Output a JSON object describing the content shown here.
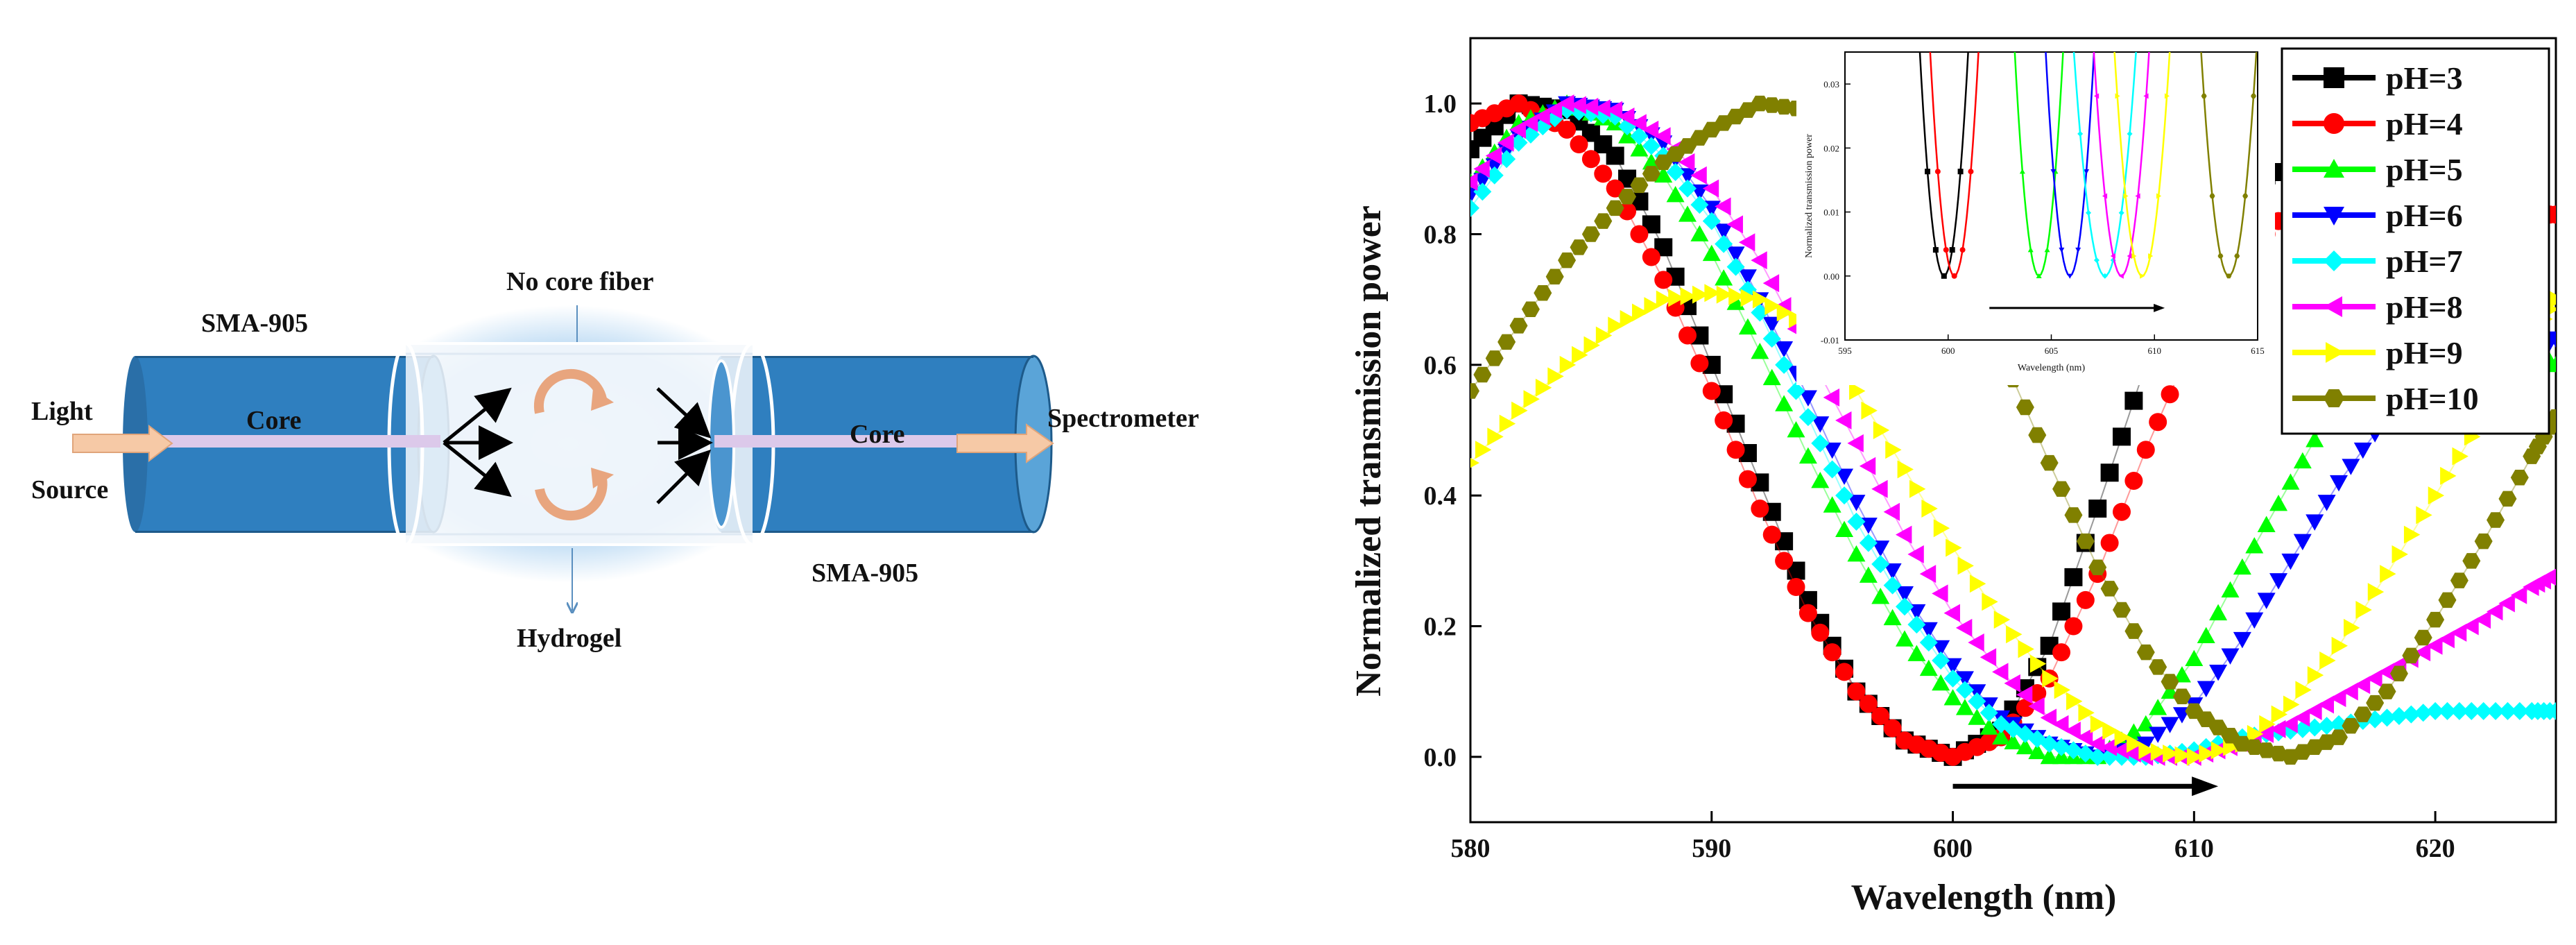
{
  "diagram": {
    "labels": {
      "light": "Light",
      "source": "Source",
      "core_left": "Core",
      "core_right": "Core",
      "sma_top": "SMA-905",
      "sma_bottom": "SMA-905",
      "no_core_fiber": "No core fiber",
      "hydrogel": "Hydrogel",
      "spectrometer": "Spectrometer"
    },
    "colors": {
      "cylinder": "#2f7fbf",
      "cylinder_end": "#5aa4d8",
      "glow": "#9cc8ee",
      "core_strip": "#d8c8e8",
      "arrow_fill": "#f6c9a6"
    }
  },
  "chart_data": {
    "type": "scatter",
    "xlabel": "Wavelength (nm)",
    "ylabel": "Normalized transmission power",
    "xlim": [
      580,
      625
    ],
    "ylim": [
      -0.1,
      1.1
    ],
    "xticks": [
      580,
      590,
      600,
      610,
      620
    ],
    "yticks": [
      0.0,
      0.2,
      0.4,
      0.6,
      0.8,
      1.0
    ],
    "xtick_labels": [
      "580",
      "590",
      "600",
      "610",
      "620"
    ],
    "ytick_labels": [
      "0.0",
      "0.2",
      "0.4",
      "0.6",
      "0.8",
      "1.0"
    ],
    "legend_position": "top-right",
    "shift_arrow": {
      "from": 600,
      "to": 611,
      "y": -0.045
    },
    "series": [
      {
        "name": "pH=3",
        "color": "#000000",
        "marker": "square",
        "points": [
          [
            580,
            0.93
          ],
          [
            582,
            1.0
          ],
          [
            584,
            0.99
          ],
          [
            586,
            0.92
          ],
          [
            588,
            0.78
          ],
          [
            590,
            0.6
          ],
          [
            592,
            0.42
          ],
          [
            594,
            0.24
          ],
          [
            596,
            0.1
          ],
          [
            598,
            0.025
          ],
          [
            600,
            0.0
          ],
          [
            602,
            0.04
          ],
          [
            604,
            0.17
          ],
          [
            606,
            0.38
          ],
          [
            608,
            0.6
          ],
          [
            610,
            0.78
          ],
          [
            612,
            0.88
          ],
          [
            614,
            0.9
          ]
        ]
      },
      {
        "name": "pH=4",
        "color": "#ff0000",
        "marker": "circle",
        "points": [
          [
            580,
            0.97
          ],
          [
            582,
            1.0
          ],
          [
            584,
            0.96
          ],
          [
            586,
            0.87
          ],
          [
            588,
            0.73
          ],
          [
            590,
            0.56
          ],
          [
            592,
            0.38
          ],
          [
            594,
            0.22
          ],
          [
            596,
            0.1
          ],
          [
            598,
            0.025
          ],
          [
            600,
            0.0
          ],
          [
            602,
            0.03
          ],
          [
            604,
            0.12
          ],
          [
            606,
            0.28
          ],
          [
            608,
            0.47
          ],
          [
            610,
            0.64
          ],
          [
            612,
            0.76
          ],
          [
            614,
            0.84
          ],
          [
            616,
            0.88
          ],
          [
            618,
            0.9
          ],
          [
            620,
            0.9
          ],
          [
            622,
            0.88
          ],
          [
            624,
            0.83
          ],
          [
            625,
            0.83
          ]
        ]
      },
      {
        "name": "pH=5",
        "color": "#00ff00",
        "marker": "triangle-up",
        "points": [
          [
            580,
            0.88
          ],
          [
            582,
            0.97
          ],
          [
            584,
            1.0
          ],
          [
            586,
            0.97
          ],
          [
            588,
            0.89
          ],
          [
            590,
            0.77
          ],
          [
            592,
            0.62
          ],
          [
            594,
            0.46
          ],
          [
            596,
            0.31
          ],
          [
            598,
            0.18
          ],
          [
            600,
            0.09
          ],
          [
            602,
            0.03
          ],
          [
            604,
            0.0
          ],
          [
            606,
            0.0
          ],
          [
            608,
            0.05
          ],
          [
            610,
            0.15
          ],
          [
            612,
            0.29
          ],
          [
            614,
            0.42
          ],
          [
            616,
            0.55
          ],
          [
            618,
            0.64
          ],
          [
            620,
            0.68
          ],
          [
            622,
            0.68
          ],
          [
            624,
            0.62
          ],
          [
            625,
            0.6
          ]
        ]
      },
      {
        "name": "pH=6",
        "color": "#0000ff",
        "marker": "triangle-down",
        "points": [
          [
            580,
            0.86
          ],
          [
            582,
            0.95
          ],
          [
            584,
            1.0
          ],
          [
            586,
            0.99
          ],
          [
            588,
            0.94
          ],
          [
            590,
            0.84
          ],
          [
            592,
            0.7
          ],
          [
            594,
            0.55
          ],
          [
            596,
            0.39
          ],
          [
            598,
            0.25
          ],
          [
            600,
            0.14
          ],
          [
            602,
            0.06
          ],
          [
            604,
            0.02
          ],
          [
            606,
            0.0
          ],
          [
            608,
            0.02
          ],
          [
            610,
            0.08
          ],
          [
            612,
            0.18
          ],
          [
            614,
            0.3
          ],
          [
            616,
            0.42
          ],
          [
            618,
            0.52
          ],
          [
            620,
            0.58
          ],
          [
            622,
            0.6
          ],
          [
            624,
            0.62
          ],
          [
            625,
            0.64
          ]
        ]
      },
      {
        "name": "pH=7",
        "color": "#00ffff",
        "marker": "diamond",
        "points": [
          [
            580,
            0.84
          ],
          [
            582,
            0.94
          ],
          [
            584,
            0.99
          ],
          [
            586,
            0.98
          ],
          [
            588,
            0.92
          ],
          [
            590,
            0.82
          ],
          [
            592,
            0.68
          ],
          [
            594,
            0.52
          ],
          [
            596,
            0.36
          ],
          [
            598,
            0.23
          ],
          [
            600,
            0.12
          ],
          [
            602,
            0.05
          ],
          [
            604,
            0.02
          ],
          [
            606,
            0.0
          ],
          [
            608,
            0.0
          ],
          [
            610,
            0.01
          ],
          [
            612,
            0.03
          ],
          [
            614,
            0.04
          ],
          [
            616,
            0.05
          ],
          [
            618,
            0.06
          ],
          [
            620,
            0.07
          ],
          [
            622,
            0.07
          ],
          [
            624,
            0.07
          ],
          [
            625,
            0.07
          ]
        ]
      },
      {
        "name": "pH=8",
        "color": "#ff00ff",
        "marker": "triangle-left",
        "points": [
          [
            580,
            0.88
          ],
          [
            582,
            0.96
          ],
          [
            584,
            1.0
          ],
          [
            586,
            0.99
          ],
          [
            588,
            0.95
          ],
          [
            590,
            0.87
          ],
          [
            592,
            0.76
          ],
          [
            594,
            0.62
          ],
          [
            596,
            0.48
          ],
          [
            598,
            0.34
          ],
          [
            600,
            0.22
          ],
          [
            602,
            0.13
          ],
          [
            604,
            0.06
          ],
          [
            606,
            0.02
          ],
          [
            608,
            0.0
          ],
          [
            610,
            0.0
          ],
          [
            612,
            0.02
          ],
          [
            614,
            0.05
          ],
          [
            616,
            0.09
          ],
          [
            618,
            0.13
          ],
          [
            620,
            0.17
          ],
          [
            622,
            0.21
          ],
          [
            624,
            0.26
          ],
          [
            625,
            0.28
          ]
        ]
      },
      {
        "name": "pH=9",
        "color": "#ffff00",
        "marker": "triangle-right",
        "points": [
          [
            580,
            0.45
          ],
          [
            582,
            0.53
          ],
          [
            584,
            0.6
          ],
          [
            586,
            0.66
          ],
          [
            588,
            0.7
          ],
          [
            590,
            0.71
          ],
          [
            592,
            0.7
          ],
          [
            594,
            0.66
          ],
          [
            596,
            0.56
          ],
          [
            598,
            0.44
          ],
          [
            600,
            0.32
          ],
          [
            602,
            0.21
          ],
          [
            604,
            0.12
          ],
          [
            606,
            0.05
          ],
          [
            608,
            0.01
          ],
          [
            610,
            0.0
          ],
          [
            612,
            0.02
          ],
          [
            614,
            0.08
          ],
          [
            616,
            0.17
          ],
          [
            618,
            0.28
          ],
          [
            620,
            0.4
          ],
          [
            622,
            0.52
          ],
          [
            624,
            0.64
          ],
          [
            625,
            0.7
          ]
        ]
      },
      {
        "name": "pH=10",
        "color": "#808000",
        "marker": "hexagon",
        "points": [
          [
            580,
            0.56
          ],
          [
            582,
            0.66
          ],
          [
            584,
            0.76
          ],
          [
            586,
            0.84
          ],
          [
            588,
            0.91
          ],
          [
            590,
            0.96
          ],
          [
            592,
            1.0
          ],
          [
            594,
            0.99
          ],
          [
            596,
            0.96
          ],
          [
            598,
            0.9
          ],
          [
            600,
            0.78
          ],
          [
            602,
            0.62
          ],
          [
            604,
            0.45
          ],
          [
            606,
            0.29
          ],
          [
            608,
            0.16
          ],
          [
            610,
            0.07
          ],
          [
            612,
            0.02
          ],
          [
            614,
            0.0
          ],
          [
            616,
            0.03
          ],
          [
            618,
            0.1
          ],
          [
            620,
            0.21
          ],
          [
            622,
            0.33
          ],
          [
            624,
            0.46
          ],
          [
            625,
            0.52
          ]
        ]
      }
    ],
    "inset": {
      "xlabel": "Wavelength (nm)",
      "ylabel": "Normalized transmission power",
      "xlim": [
        595,
        615
      ],
      "ylim": [
        -0.01,
        0.035
      ],
      "xticks": [
        595,
        600,
        605,
        610,
        615
      ],
      "yticks": [
        -0.01,
        0.0,
        0.01,
        0.02,
        0.03
      ],
      "xtick_labels": [
        "595",
        "600",
        "605",
        "610",
        "615"
      ],
      "ytick_labels": [
        "-0.01",
        "0.00",
        "0.01",
        "0.02",
        "0.03"
      ],
      "shift_arrow": {
        "from": 602,
        "to": 610.5,
        "y": -0.005
      },
      "minima": [
        {
          "name": "pH=3",
          "center": 599.8,
          "width": 0.7
        },
        {
          "name": "pH=4",
          "center": 600.3,
          "width": 0.7
        },
        {
          "name": "pH=5",
          "center": 604.4,
          "width": 0.7
        },
        {
          "name": "pH=6",
          "center": 605.9,
          "width": 0.7
        },
        {
          "name": "pH=7",
          "center": 607.6,
          "width": 0.9
        },
        {
          "name": "pH=8",
          "center": 608.4,
          "width": 0.8
        },
        {
          "name": "pH=9",
          "center": 609.4,
          "width": 0.8
        },
        {
          "name": "pH=10",
          "center": 613.6,
          "width": 0.8
        }
      ]
    }
  }
}
